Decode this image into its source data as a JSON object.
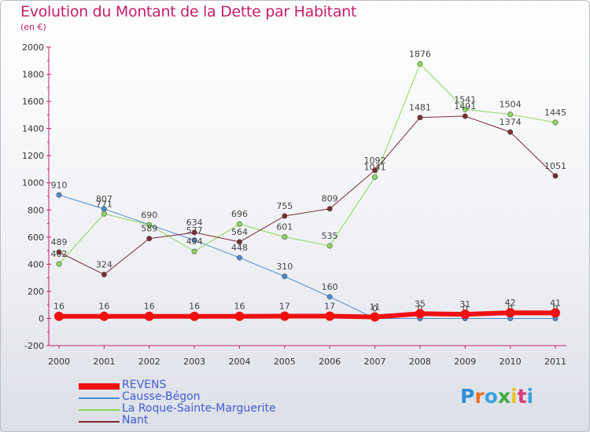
{
  "title": "Evolution du Montant de la Dette par Habitant",
  "subtitle": "(en €)",
  "logo": {
    "text": "Proxiti",
    "colors": [
      "#2f8fd8",
      "#e8732a",
      "#3aa0e0",
      "#3cab3c",
      "#e8c32a",
      "#d83a7a",
      "#3aa0e0"
    ]
  },
  "chart_data": {
    "type": "line",
    "title": "Evolution du Montant de la Dette par Habitant",
    "ylabel": "(en €)",
    "xlabel": "",
    "ylim": [
      -200,
      2000
    ],
    "yticks": [
      -200,
      0,
      200,
      400,
      600,
      800,
      1000,
      1200,
      1400,
      1600,
      1800,
      2000
    ],
    "grid": false,
    "legend_position": "bottom-left",
    "x": [
      2000,
      2001,
      2002,
      2003,
      2004,
      2005,
      2006,
      2007,
      2008,
      2009,
      2010,
      2011
    ],
    "series": [
      {
        "name": "Causse-Bégon",
        "color": "#4a8ad0",
        "width": 1,
        "values": [
          910,
          807,
          null,
          577,
          448,
          310,
          160,
          0,
          0,
          0,
          0,
          0
        ],
        "labels": [
          "910",
          "807",
          "",
          "577",
          "448",
          "310",
          "160",
          "0",
          "0",
          "0",
          "0",
          "0"
        ]
      },
      {
        "name": "La Roque-Sainte-Marguerite",
        "color": "#8ad85a",
        "width": 1,
        "values": [
          402,
          771,
          690,
          494,
          696,
          601,
          535,
          1041,
          1876,
          1541,
          1504,
          1445
        ],
        "labels": [
          "402",
          "771",
          "690",
          "494",
          "696",
          "601",
          "535",
          "1041",
          "1876",
          "1541",
          "1504",
          "1445"
        ]
      },
      {
        "name": "Nant",
        "color": "#7a2a30",
        "width": 1,
        "values": [
          489,
          324,
          589,
          634,
          564,
          755,
          809,
          1092,
          1481,
          1491,
          1374,
          1051
        ],
        "labels": [
          "489",
          "324",
          "589",
          "634",
          "564",
          "755",
          "809",
          "1092",
          "1481",
          "1491",
          "1374",
          "1051"
        ]
      },
      {
        "name": "REVENS",
        "color": "#ee1111",
        "width": 6,
        "values": [
          16,
          16,
          16,
          16,
          16,
          17,
          17,
          11,
          35,
          31,
          42,
          41
        ],
        "labels": [
          "16",
          "16",
          "16",
          "16",
          "16",
          "17",
          "17",
          "11",
          "35",
          "31",
          "42",
          "41"
        ]
      }
    ],
    "legend_order": [
      "REVENS",
      "Causse-Bégon",
      "La Roque-Sainte-Marguerite",
      "Nant"
    ]
  }
}
